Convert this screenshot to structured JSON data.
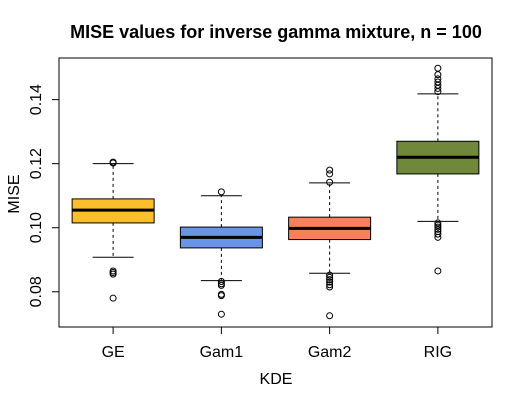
{
  "chart_data": {
    "type": "boxplot",
    "title": "MISE values for inverse gamma mixture, n = 100",
    "xlabel": "KDE",
    "ylabel": "MISE",
    "ylim": [
      0.069,
      0.153
    ],
    "yticks": [
      "0.08",
      "0.10",
      "0.12",
      "0.14"
    ],
    "ytick_values": [
      0.08,
      0.1,
      0.12,
      0.14
    ],
    "grid": false,
    "legend": "none",
    "categories": [
      "GE",
      "Gam1",
      "Gam2",
      "RIG"
    ],
    "boxes": [
      {
        "category": "GE",
        "color": "#FBBF2C",
        "whisker_low": 0.0908,
        "q1": 0.1015,
        "median": 0.1055,
        "q3": 0.109,
        "whisker_high": 0.12,
        "outliers": [
          0.1205,
          0.1202,
          0.0865,
          0.086,
          0.0855,
          0.078
        ]
      },
      {
        "category": "Gam1",
        "color": "#6A95E7",
        "whisker_low": 0.0835,
        "q1": 0.0937,
        "median": 0.097,
        "q3": 0.1002,
        "whisker_high": 0.11,
        "outliers": [
          0.1112,
          0.0832,
          0.0825,
          0.082,
          0.0792,
          0.0788,
          0.073
        ]
      },
      {
        "category": "Gam2",
        "color": "#FA7F5B",
        "whisker_low": 0.0858,
        "q1": 0.0963,
        "median": 0.0998,
        "q3": 0.1033,
        "whisker_high": 0.114,
        "outliers": [
          0.118,
          0.1168,
          0.1142,
          0.0852,
          0.0845,
          0.0838,
          0.083,
          0.0822,
          0.0815,
          0.0725
        ]
      },
      {
        "category": "RIG",
        "color": "#70883A",
        "whisker_low": 0.102,
        "q1": 0.1168,
        "median": 0.122,
        "q3": 0.127,
        "whisker_high": 0.1418,
        "outliers": [
          0.1498,
          0.1478,
          0.1465,
          0.1455,
          0.1445,
          0.1435,
          0.1425,
          0.1015,
          0.1008,
          0.1002,
          0.0995,
          0.0988,
          0.098,
          0.097,
          0.0865
        ]
      }
    ]
  }
}
